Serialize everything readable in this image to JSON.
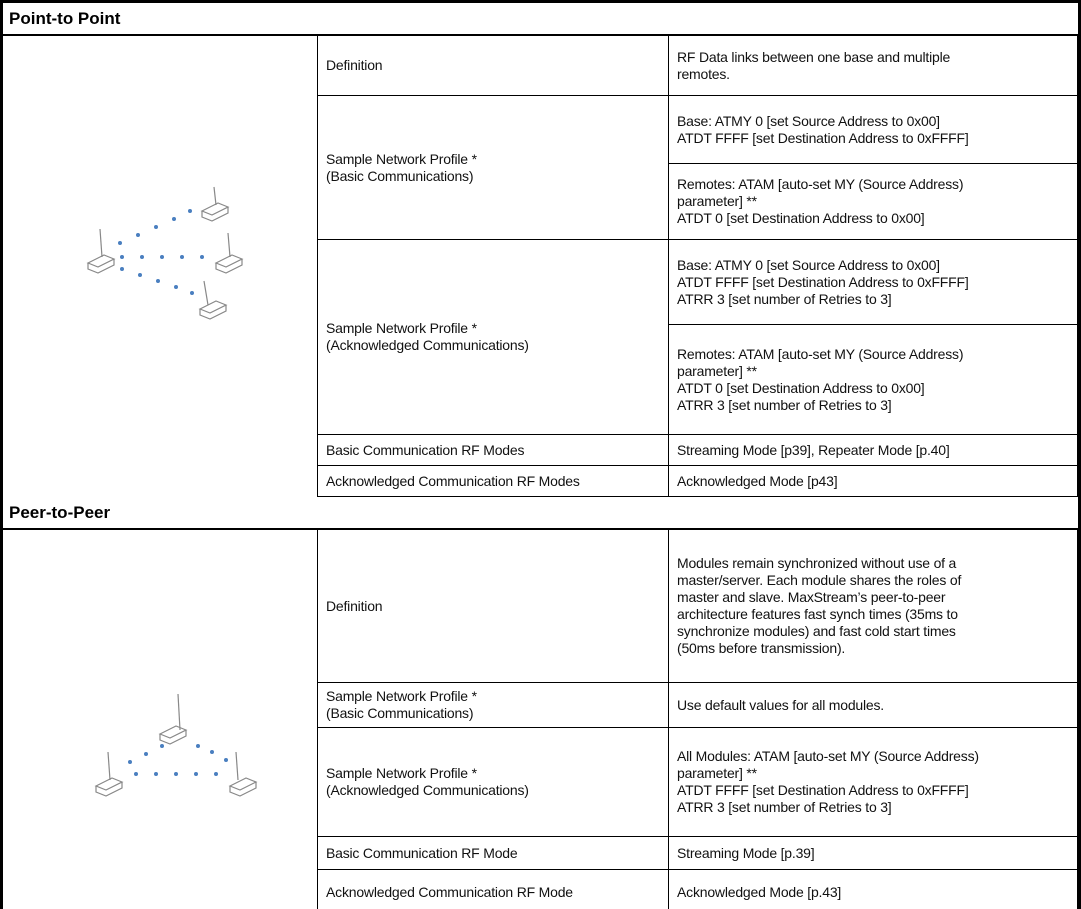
{
  "sections": [
    {
      "title": "Point-to Point",
      "rows": [
        {
          "label": [
            "Definition"
          ],
          "values": [
            [
              "RF Data links between one base and multiple",
              "remotes."
            ]
          ]
        },
        {
          "label": [
            "Sample Network Profile *",
            "(Basic Communications)"
          ],
          "values": [
            [
              "Base: ATMY 0 [set Source Address to 0x00]",
              "ATDT FFFF [set Destination Address to 0xFFFF]"
            ],
            [
              "Remotes: ATAM [auto-set MY (Source Address)",
              "parameter] **",
              "ATDT 0 [set Destination Address to 0x00]"
            ]
          ]
        },
        {
          "label": [
            "Sample Network Profile *",
            "(Acknowledged Communications)"
          ],
          "values": [
            [
              "Base: ATMY 0 [set Source Address to 0x00]",
              "ATDT FFFF [set Destination Address to 0xFFFF]",
              "ATRR 3 [set number of Retries to 3]"
            ],
            [
              "Remotes: ATAM [auto-set MY (Source Address)",
              "parameter] **",
              "ATDT 0 [set Destination Address to 0x00]",
              "ATRR 3 [set number of Retries to 3]"
            ]
          ]
        },
        {
          "label": [
            "Basic Communication RF Modes"
          ],
          "values": [
            [
              "Streaming Mode [p39], Repeater Mode [p.40]"
            ]
          ]
        },
        {
          "label": [
            "Acknowledged Communication RF Modes"
          ],
          "values": [
            [
              "Acknowledged Mode [p43]"
            ]
          ]
        }
      ]
    },
    {
      "title": "Peer-to-Peer",
      "rows": [
        {
          "label": [
            "Definition"
          ],
          "values": [
            [
              "Modules remain synchronized without use of a",
              "master/server. Each module shares the roles of",
              "master and slave. MaxStream’s peer-to-peer",
              "architecture features fast synch times (35ms to",
              "synchronize modules) and fast cold start times",
              "(50ms before transmission)."
            ]
          ]
        },
        {
          "label": [
            "Sample Network Profile *",
            "(Basic Communications)"
          ],
          "values": [
            [
              "Use default values for all modules."
            ]
          ]
        },
        {
          "label": [
            "Sample Network Profile *",
            "(Acknowledged Communications)"
          ],
          "values": [
            [
              "All Modules: ATAM [auto-set MY (Source Address)",
              "parameter] **",
              "ATDT FFFF [set Destination Address to 0xFFFF]",
              "ATRR 3 [set number of Retries to 3]"
            ]
          ]
        },
        {
          "label": [
            "Basic Communication RF Mode"
          ],
          "values": [
            [
              "Streaming Mode [p.39]"
            ]
          ]
        },
        {
          "label": [
            "Acknowledged Communication RF Mode"
          ],
          "values": [
            [
              "Acknowledged Mode [p.43]"
            ]
          ]
        }
      ]
    }
  ]
}
